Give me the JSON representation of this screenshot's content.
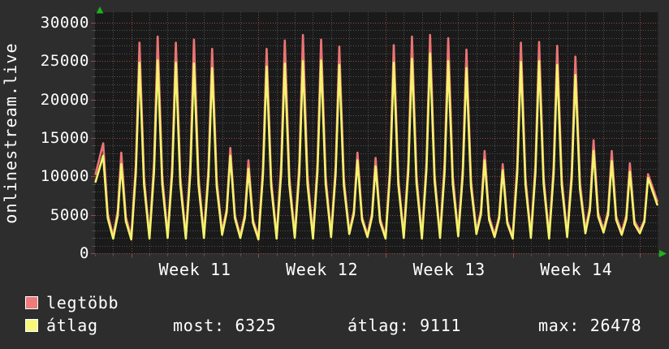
{
  "page": {
    "background": "#2d2d2d",
    "text_color": "#ffffff"
  },
  "graph": {
    "vertical_title": "onlinestream.live",
    "plot": {
      "bg_color": "#1a1a1a",
      "minor_grid_color": "#525252",
      "major_grid_color": "#9e4545",
      "arrow_color": "#1db31d"
    }
  },
  "chart_data": {
    "type": "line",
    "title": "onlinestream.live",
    "xlabel": "",
    "ylabel": "",
    "ylim": [
      0,
      30000
    ],
    "ytick_step": 5000,
    "minor_ytick_step": 1000,
    "ytick_labels": [
      "30000",
      "25000",
      "20000",
      "15000",
      "10000",
      "5000",
      "0"
    ],
    "grid": true,
    "legend_position": "bottom-left",
    "x_total_days": 31,
    "week_labels": [
      "Week 11",
      "Week 12",
      "Week 13",
      "Week 14"
    ],
    "week_line_days": [
      2,
      9,
      16,
      23,
      30
    ],
    "peak_phase_in_day": 0.45,
    "series": [
      {
        "name": "legtöbb",
        "role": "daily maximum viewers",
        "color": "#ec7474",
        "daily_peaks": [
          14300,
          13100,
          27400,
          28200,
          27400,
          27800,
          26600,
          13700,
          12100,
          26600,
          27700,
          28400,
          27800,
          26900,
          13100,
          12400,
          27100,
          28200,
          28400,
          28000,
          26500,
          13300,
          11600,
          27400,
          27500,
          27000,
          25600,
          14700,
          13300,
          11700,
          10300
        ],
        "daily_troughs": [
          2400,
          2200,
          2100,
          2200,
          2300,
          2200,
          2300,
          2700,
          2300,
          2100,
          2200,
          2300,
          2200,
          2400,
          2800,
          2400,
          2200,
          2300,
          2200,
          2300,
          2500,
          2800,
          2400,
          2200,
          2300,
          2200,
          2400,
          2950,
          3050,
          2750,
          2950
        ],
        "edge_start": 10300,
        "edge_end": 6800
      },
      {
        "name": "átlag",
        "role": "daily average viewers",
        "color": "#f3f36d",
        "daily_peaks": [
          12700,
          11600,
          24800,
          25100,
          24800,
          24700,
          24100,
          12700,
          11000,
          24300,
          24700,
          25000,
          25100,
          24500,
          12100,
          11300,
          24800,
          25300,
          26000,
          25000,
          24100,
          12100,
          10800,
          24900,
          25000,
          24500,
          23200,
          13300,
          12000,
          10600,
          9800
        ],
        "daily_troughs": [
          2100,
          1900,
          1800,
          1900,
          2000,
          1900,
          2000,
          2400,
          2000,
          1800,
          1900,
          2000,
          1900,
          2100,
          2500,
          2100,
          1900,
          2000,
          1900,
          2000,
          2200,
          2500,
          2100,
          1900,
          2000,
          1900,
          2100,
          2600,
          2700,
          2400,
          2600
        ],
        "edge_start": 9300,
        "edge_end": 6325
      }
    ],
    "stats": {
      "most": 6325,
      "atlag": 9111,
      "max": 26478
    }
  },
  "legend": {
    "items": [
      {
        "label": "legtöbb",
        "color": "#ef7b7b"
      },
      {
        "label": "átlag",
        "color": "#f7f77e"
      }
    ],
    "stats": [
      {
        "label": "most",
        "value": "6325",
        "text": "most: 6325"
      },
      {
        "label": "átlag",
        "value": "9111",
        "text": "átlag: 9111"
      },
      {
        "label": "max",
        "value": "26478",
        "text": "max: 26478"
      }
    ]
  }
}
